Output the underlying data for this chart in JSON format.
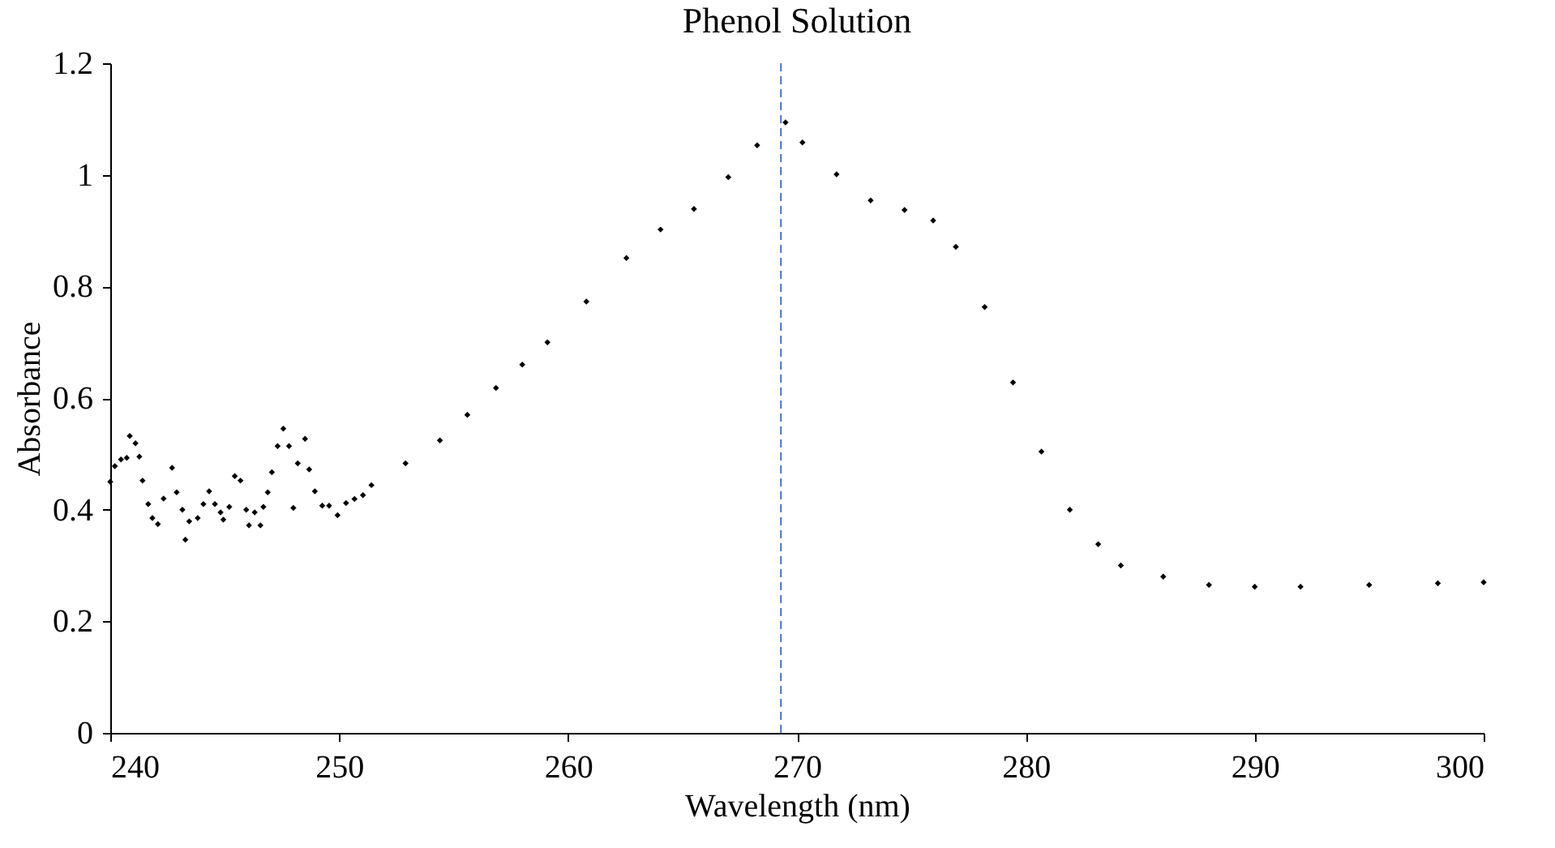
{
  "chart_data": {
    "type": "scatter",
    "title": "Phenol Solution",
    "xlabel": "Wavelength (nm)",
    "ylabel": "Absorbance",
    "xlim": [
      240,
      300
    ],
    "xticks": [
      240,
      250,
      260,
      270,
      280,
      290,
      300
    ],
    "ylim": [
      0,
      1.2
    ],
    "yticks": [
      0,
      0.2,
      0.4,
      0.6,
      0.8,
      1,
      1.2
    ],
    "grid": false,
    "marker": "diamond",
    "ref_lines": [
      {
        "axis": "x",
        "value": 269.3,
        "color": "#4472c4",
        "line_style": "dashed"
      }
    ],
    "series": [
      {
        "color": "#000000",
        "x": [
          240.0,
          240.2,
          240.47,
          240.72,
          240.85,
          241.1,
          241.27,
          241.41,
          241.66,
          241.84,
          242.08,
          242.33,
          242.7,
          242.9,
          243.15,
          243.28,
          243.45,
          243.82,
          244.07,
          244.32,
          244.57,
          244.82,
          244.94,
          245.2,
          245.44,
          245.69,
          245.94,
          246.06,
          246.31,
          246.56,
          246.69,
          246.88,
          247.06,
          247.31,
          247.56,
          247.81,
          248.0,
          248.19,
          248.51,
          248.69,
          248.94,
          249.26,
          249.56,
          249.93,
          250.3,
          250.67,
          251.04,
          251.41,
          252.9,
          254.4,
          255.6,
          256.85,
          258.0,
          259.1,
          260.8,
          262.55,
          264.04,
          265.5,
          267.0,
          268.26,
          269.5,
          270.24,
          271.73,
          273.22,
          274.7,
          275.95,
          276.94,
          278.2,
          279.44,
          280.68,
          281.92,
          283.16,
          284.15,
          286,
          288,
          290,
          292,
          295,
          298,
          300
        ],
        "values": [
          0.45,
          0.478,
          0.49,
          0.493,
          0.532,
          0.519,
          0.495,
          0.452,
          0.41,
          0.385,
          0.374,
          0.42,
          0.475,
          0.431,
          0.4,
          0.346,
          0.379,
          0.385,
          0.41,
          0.433,
          0.41,
          0.395,
          0.382,
          0.405,
          0.46,
          0.452,
          0.4,
          0.372,
          0.395,
          0.372,
          0.405,
          0.431,
          0.467,
          0.514,
          0.545,
          0.514,
          0.403,
          0.483,
          0.527,
          0.472,
          0.433,
          0.407,
          0.407,
          0.39,
          0.412,
          0.419,
          0.426,
          0.444,
          0.483,
          0.524,
          0.57,
          0.618,
          0.66,
          0.7,
          0.773,
          0.851,
          0.902,
          0.939,
          0.996,
          1.053,
          1.094,
          1.058,
          1.001,
          0.954,
          0.937,
          0.918,
          0.871,
          0.763,
          0.628,
          0.504,
          0.4,
          0.338,
          0.3,
          0.28,
          0.265,
          0.262,
          0.262,
          0.265,
          0.268,
          0.27
        ]
      }
    ]
  }
}
